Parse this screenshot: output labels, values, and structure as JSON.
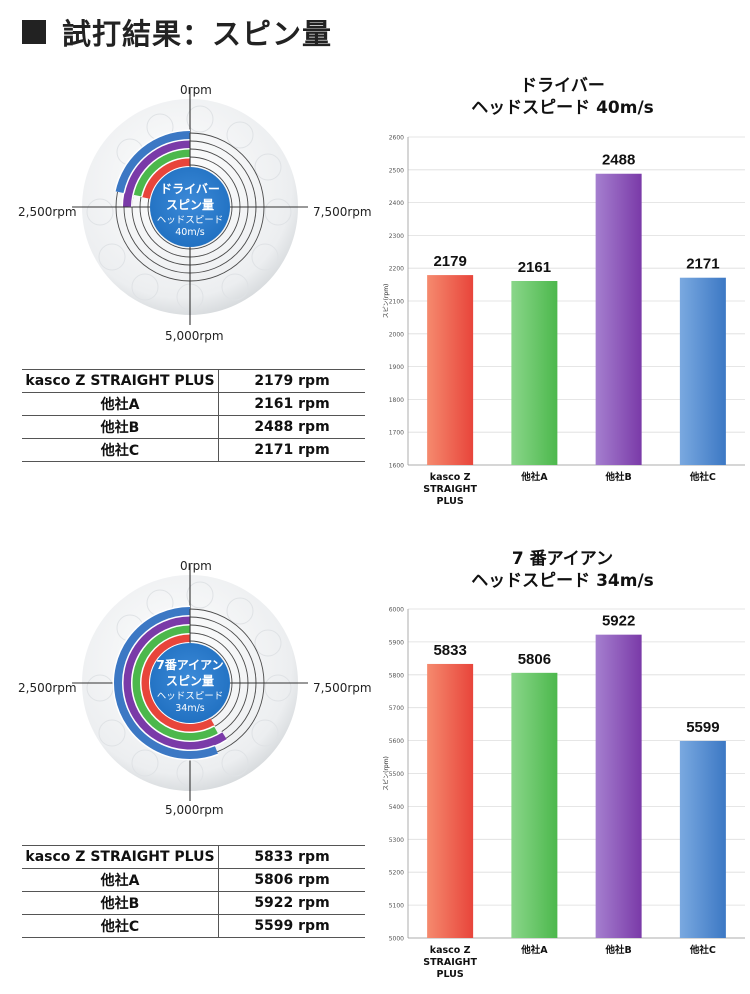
{
  "page_title": "試打結果：スピン量",
  "colors": {
    "kasco": "#e8453b",
    "a": "#4cb84c",
    "b": "#7a3aa8",
    "c": "#3c78c4",
    "center": "#1f6fc0"
  },
  "dial_labels": {
    "top": "0rpm",
    "right": "7,500rpm",
    "bottom": "5,000rpm",
    "left": "2,500rpm"
  },
  "driver": {
    "center_line1": "ドライバー",
    "center_line2": "スピン量",
    "center_line3": "ヘッドスピード",
    "center_line4": "40m/s",
    "table": [
      {
        "name": "kasco Z STRAIGHT PLUS",
        "value": "2179 rpm"
      },
      {
        "name": "他社A",
        "value": "2161 rpm"
      },
      {
        "name": "他社B",
        "value": "2488 rpm"
      },
      {
        "name": "他社C",
        "value": "2171 rpm"
      }
    ]
  },
  "iron": {
    "center_line1": "7番アイアン",
    "center_line2": "スピン量",
    "center_line3": "ヘッドスピード",
    "center_line4": "34m/s",
    "table": [
      {
        "name": "kasco Z STRAIGHT PLUS",
        "value": "5833 rpm"
      },
      {
        "name": "他社A",
        "value": "5806 rpm"
      },
      {
        "name": "他社B",
        "value": "5922 rpm"
      },
      {
        "name": "他社C",
        "value": "5599 rpm"
      }
    ]
  },
  "chart_data": [
    {
      "type": "bar",
      "title": "ドライバー\nヘッドスピード 40m/s",
      "title_line1": "ドライバー",
      "title_line2": "ヘッドスピード 40m/s",
      "ylabel": "スピン(rpm)",
      "xlabel": "",
      "ylim": [
        1600,
        2600
      ],
      "yticks": [
        1600,
        1700,
        1800,
        1900,
        2000,
        2100,
        2200,
        2300,
        2400,
        2500,
        2600
      ],
      "categories": [
        "kasco Z STRAIGHT PLUS",
        "他社A",
        "他社B",
        "他社C"
      ],
      "category_lines": [
        [
          "kasco Z",
          "STRAIGHT",
          "PLUS"
        ],
        [
          "他社A"
        ],
        [
          "他社B"
        ],
        [
          "他社C"
        ]
      ],
      "values": [
        2179,
        2161,
        2488,
        2171
      ],
      "grid": true
    },
    {
      "type": "bar",
      "title": "7 番アイアン\nヘッドスピード 34m/s",
      "title_line1": "7 番アイアン",
      "title_line2": "ヘッドスピード 34m/s",
      "ylabel": "スピン(rpm)",
      "xlabel": "",
      "ylim": [
        5000,
        6000
      ],
      "yticks": [
        5000,
        5100,
        5200,
        5300,
        5400,
        5500,
        5600,
        5700,
        5800,
        5900,
        6000
      ],
      "categories": [
        "kasco Z STRAIGHT PLUS",
        "他社A",
        "他社B",
        "他社C"
      ],
      "category_lines": [
        [
          "kasco Z",
          "STRAIGHT",
          "PLUS"
        ],
        [
          "他社A"
        ],
        [
          "他社B"
        ],
        [
          "他社C"
        ]
      ],
      "values": [
        5833,
        5806,
        5922,
        5599
      ],
      "grid": true
    }
  ]
}
